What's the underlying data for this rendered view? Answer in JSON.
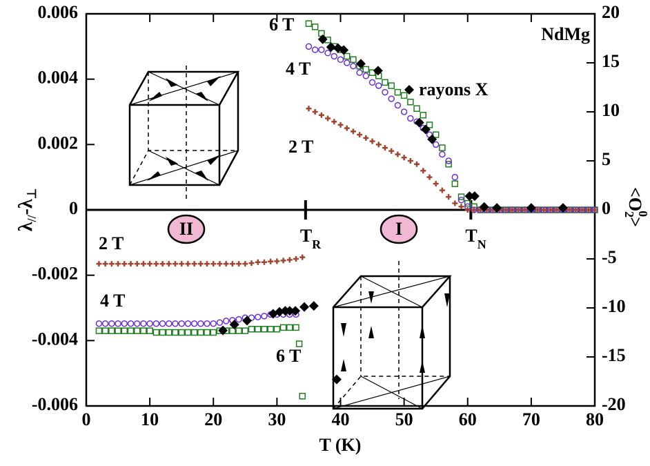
{
  "chart_data": {
    "type": "scatter",
    "xlabel": "T (K)",
    "ylabel": [
      "λ",
      "//",
      "-λ",
      "⊥"
    ],
    "y2label": [
      "<O",
      "2",
      "0",
      ">"
    ],
    "xlim": [
      0,
      80
    ],
    "xticks": [
      0,
      10,
      20,
      30,
      40,
      50,
      60,
      70,
      80
    ],
    "ylim": [
      -0.006,
      0.006
    ],
    "yticks": [
      -0.006,
      -0.004,
      -0.002,
      0,
      0.002,
      0.004,
      0.006
    ],
    "y2lim": [
      -20,
      20
    ],
    "y2ticks": [
      -20,
      -15,
      -10,
      -5,
      0,
      5,
      10,
      15,
      20
    ],
    "annotations": [
      {
        "text": "NdMg"
      },
      {
        "text": "II"
      },
      {
        "text": "I"
      },
      {
        "text": "T",
        "sub": "R",
        "x": 34.5
      },
      {
        "text": "T",
        "sub": "N",
        "x": 60.5
      }
    ],
    "series": [
      {
        "name": "6 T",
        "color": "#1e7d1e",
        "marker": "square",
        "x": [
          2,
          3,
          4,
          5,
          6,
          7,
          8,
          9,
          10,
          11,
          12,
          13,
          14,
          15,
          16,
          17,
          18,
          19,
          20,
          21,
          22,
          23,
          24,
          25,
          26,
          27,
          28,
          29,
          30,
          31,
          32,
          33,
          33.5,
          34,
          35,
          36,
          37,
          38,
          39,
          40,
          41,
          42,
          43,
          44,
          45,
          46,
          47,
          48,
          49,
          50,
          51,
          52,
          53,
          54,
          55,
          56,
          57,
          58,
          59,
          60,
          61,
          62,
          63,
          64,
          65,
          66,
          67,
          68,
          69,
          70,
          71,
          72,
          73,
          74,
          75,
          76,
          77,
          78,
          79,
          80
        ],
        "values": [
          -0.0037,
          -0.0037,
          -0.0037,
          -0.0037,
          -0.0037,
          -0.0037,
          -0.0037,
          -0.0037,
          -0.0037,
          -0.00375,
          -0.00375,
          -0.00375,
          -0.00375,
          -0.00375,
          -0.00375,
          -0.00375,
          -0.00375,
          -0.00375,
          -0.00375,
          -0.0037,
          -0.0037,
          -0.0037,
          -0.0037,
          -0.0037,
          -0.00365,
          -0.00365,
          -0.00365,
          -0.00365,
          -0.00365,
          -0.0036,
          -0.0036,
          -0.0036,
          -0.0041,
          -0.0057,
          0.0057,
          0.0056,
          0.0054,
          0.0052,
          0.005,
          0.0049,
          0.0047,
          0.0046,
          0.0044,
          0.0043,
          0.0042,
          0.0041,
          0.0039,
          0.0038,
          0.0036,
          0.0035,
          0.0033,
          0.0031,
          0.0029,
          0.0026,
          0.0023,
          0.0019,
          0.0014,
          0.0008,
          0.0004,
          0.0002,
          0.0001,
          0,
          0,
          0,
          0,
          0,
          0,
          0,
          0,
          0,
          0,
          0,
          0,
          0,
          0,
          0,
          0,
          0,
          0,
          0
        ]
      },
      {
        "name": "4 T",
        "color": "#6a2ed8",
        "marker": "circle",
        "x": [
          2,
          3,
          4,
          5,
          6,
          7,
          8,
          9,
          10,
          11,
          12,
          13,
          14,
          15,
          16,
          17,
          18,
          19,
          20,
          21,
          22,
          23,
          24,
          25,
          26,
          27,
          28,
          29,
          30,
          31,
          32,
          33,
          35,
          36,
          37,
          38,
          39,
          40,
          41,
          42,
          43,
          44,
          45,
          46,
          47,
          48,
          49,
          50,
          51,
          52,
          53,
          54,
          55,
          56,
          57,
          58,
          59,
          60,
          61,
          62,
          63,
          64,
          65,
          66,
          67,
          68,
          69,
          70,
          71,
          72,
          73,
          74,
          75,
          76,
          77,
          78,
          79,
          80
        ],
        "values": [
          -0.00348,
          -0.00348,
          -0.00348,
          -0.00348,
          -0.00348,
          -0.00348,
          -0.00348,
          -0.00348,
          -0.00348,
          -0.00348,
          -0.00348,
          -0.00348,
          -0.00348,
          -0.00348,
          -0.00348,
          -0.00348,
          -0.00348,
          -0.00348,
          -0.00348,
          -0.00345,
          -0.0034,
          -0.00338,
          -0.00335,
          -0.0033,
          -0.0033,
          -0.00328,
          -0.00325,
          -0.0032,
          -0.0032,
          -0.0032,
          -0.0032,
          -0.0032,
          0.005,
          0.0049,
          0.0049,
          0.0048,
          0.0047,
          0.0046,
          0.0045,
          0.0044,
          0.0042,
          0.0041,
          0.0039,
          0.0038,
          0.0036,
          0.0034,
          0.0032,
          0.003,
          0.0028,
          0.0027,
          0.0025,
          0.0023,
          0.002,
          0.0017,
          0.0015,
          0.001,
          0.0003,
          0.0001,
          0,
          0,
          0,
          0,
          0,
          0,
          0,
          0,
          0,
          0,
          0,
          0,
          0,
          0,
          0,
          0,
          0,
          0,
          0,
          0
        ]
      },
      {
        "name": "2 T",
        "color": "#a3442e",
        "marker": "cross",
        "x": [
          2,
          3,
          4,
          5,
          6,
          7,
          8,
          9,
          10,
          11,
          12,
          13,
          14,
          15,
          16,
          17,
          18,
          19,
          20,
          21,
          22,
          23,
          24,
          25,
          26,
          27,
          28,
          29,
          30,
          31,
          32,
          33,
          34,
          35,
          36,
          37,
          38,
          39,
          40,
          41,
          42,
          43,
          44,
          45,
          46,
          47,
          48,
          49,
          50,
          51,
          52,
          53,
          54,
          55,
          56,
          57,
          58,
          59,
          60,
          61,
          62,
          63,
          64,
          65,
          66,
          67,
          68,
          69,
          70,
          71,
          72,
          73,
          74,
          75,
          76,
          77,
          78,
          79,
          80
        ],
        "values": [
          -0.00165,
          -0.00165,
          -0.00165,
          -0.00165,
          -0.00165,
          -0.00165,
          -0.00165,
          -0.00165,
          -0.00165,
          -0.00165,
          -0.00165,
          -0.00165,
          -0.00165,
          -0.00165,
          -0.00165,
          -0.00165,
          -0.00165,
          -0.00165,
          -0.00165,
          -0.00165,
          -0.00165,
          -0.00165,
          -0.00165,
          -0.00165,
          -0.00163,
          -0.0016,
          -0.0016,
          -0.00158,
          -0.00157,
          -0.00155,
          -0.00153,
          -0.0015,
          -0.00145,
          0.0031,
          0.003,
          0.0029,
          0.0028,
          0.0027,
          0.0026,
          0.0025,
          0.0024,
          0.0023,
          0.0022,
          0.0021,
          0.002,
          0.0019,
          0.0018,
          0.0017,
          0.0016,
          0.0015,
          0.0014,
          0.0012,
          0.001,
          0.0008,
          0.0006,
          0.0004,
          0.0002,
          0.0001,
          0,
          0,
          0,
          0,
          0,
          0,
          0,
          0,
          0,
          0,
          0,
          0,
          0,
          0,
          0,
          0,
          0,
          0,
          0,
          0,
          0
        ]
      },
      {
        "name": "rayons X",
        "color": "#000000",
        "marker": "diamond",
        "axis": "y2",
        "x": [
          21.5,
          23.3,
          25.3,
          29.4,
          30.4,
          31.3,
          32,
          32.9,
          34.3,
          35.8,
          39.4,
          37.2,
          38.5,
          39.6,
          40.5,
          43.2,
          45.9,
          52.4,
          53.4,
          54.4,
          60.3,
          61.1,
          62.6,
          64.6,
          70,
          75
        ],
        "values": [
          -12.3,
          -11.7,
          -11.3,
          -10.6,
          -10.4,
          -10.3,
          -10.3,
          -10.3,
          -9.9,
          -9.8,
          -17.3,
          17.4,
          16.6,
          16.5,
          16.3,
          14.9,
          14.2,
          8.9,
          8.2,
          7.2,
          1.4,
          1.4,
          0.3,
          0.2,
          0.2,
          0.2
        ]
      }
    ]
  }
}
